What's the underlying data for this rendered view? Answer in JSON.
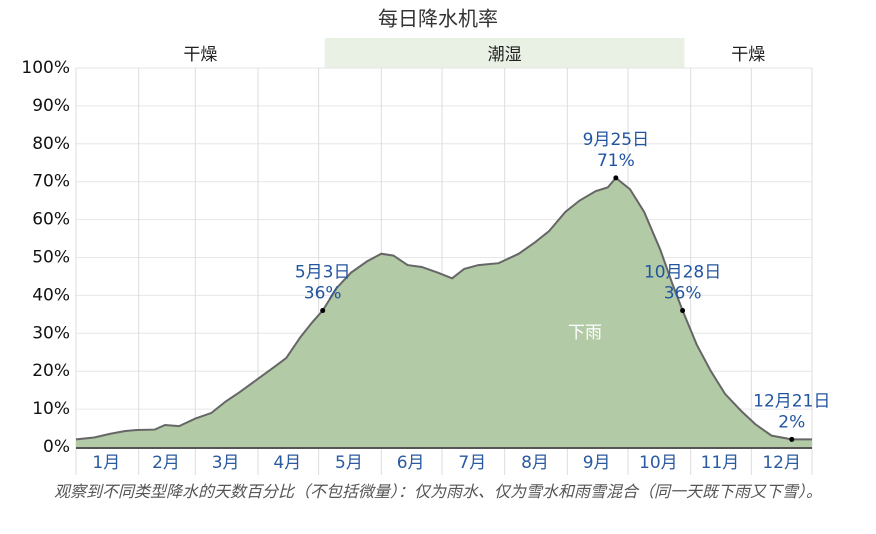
{
  "chart_data": {
    "type": "area",
    "title": "每日降水机率",
    "x": [
      1,
      10,
      18,
      25,
      31,
      40,
      45,
      52,
      60,
      68,
      75,
      82,
      91,
      100,
      105,
      112,
      118,
      123,
      130,
      137,
      145,
      152,
      158,
      165,
      172,
      180,
      187,
      193,
      200,
      210,
      220,
      228,
      235,
      243,
      250,
      258,
      264,
      268,
      275,
      282,
      290,
      296,
      301,
      308,
      315,
      322,
      330,
      337,
      345,
      355,
      365
    ],
    "series": [
      {
        "name": "下雨",
        "color": "#b2caa6",
        "line_color": "#666666",
        "values": [
          2,
          2.5,
          3.5,
          4.2,
          4.5,
          4.6,
          5.8,
          5.5,
          7.5,
          9,
          12,
          14.5,
          18,
          21.5,
          23.5,
          29,
          33,
          36,
          42,
          46,
          49,
          51,
          50.5,
          48,
          47.5,
          46,
          44.5,
          47,
          48,
          48.5,
          51,
          54,
          57,
          62,
          65,
          67.5,
          68.5,
          71,
          68,
          62,
          52,
          43,
          36,
          27,
          20,
          14,
          9.5,
          6,
          3,
          2,
          2
        ]
      }
    ],
    "xlim": [
      1,
      365
    ],
    "xticks": [
      {
        "value": 16,
        "label": "1月"
      },
      {
        "value": 45.5,
        "label": "2月"
      },
      {
        "value": 75,
        "label": "3月"
      },
      {
        "value": 105.5,
        "label": "4月"
      },
      {
        "value": 136,
        "label": "5月"
      },
      {
        "value": 166.5,
        "label": "6月"
      },
      {
        "value": 197,
        "label": "7月"
      },
      {
        "value": 228,
        "label": "8月"
      },
      {
        "value": 258.5,
        "label": "9月"
      },
      {
        "value": 289,
        "label": "10月"
      },
      {
        "value": 319.5,
        "label": "11月"
      },
      {
        "value": 350,
        "label": "12月"
      }
    ],
    "xgrid": [
      1,
      32,
      60,
      91,
      121,
      152,
      182,
      213,
      244,
      274,
      305,
      335,
      365
    ],
    "ylim": [
      0,
      100
    ],
    "yticks": [
      {
        "value": 0,
        "label": "0%"
      },
      {
        "value": 10,
        "label": "10%"
      },
      {
        "value": 20,
        "label": "20%"
      },
      {
        "value": 30,
        "label": "30%"
      },
      {
        "value": 40,
        "label": "40%"
      },
      {
        "value": 50,
        "label": "50%"
      },
      {
        "value": 60,
        "label": "60%"
      },
      {
        "value": 70,
        "label": "70%"
      },
      {
        "value": 80,
        "label": "80%"
      },
      {
        "value": 90,
        "label": "90%"
      },
      {
        "value": 100,
        "label": "100%"
      }
    ],
    "grid": true,
    "seasons": [
      {
        "label": "干燥",
        "start": 1,
        "end": 124,
        "color": "#ffffff"
      },
      {
        "label": "潮湿",
        "start": 124,
        "end": 302,
        "color": "#e9f0e4"
      },
      {
        "label": "干燥",
        "start": 302,
        "end": 365,
        "color": "#ffffff"
      }
    ],
    "annotations": [
      {
        "label": "5月3日",
        "x": 123,
        "value": 36,
        "value_label": "36%"
      },
      {
        "label": "9月25日",
        "x": 268,
        "value": 71,
        "value_label": "71%"
      },
      {
        "label": "10月28日",
        "x": 301,
        "value": 36,
        "value_label": "36%"
      },
      {
        "label": "12月21日",
        "x": 355,
        "value": 2,
        "value_label": "2%"
      }
    ],
    "caption": "观察到不同类型降水的天数百分比（不包括微量）：仅为雨水、仅为雪水和雨雪混合（同一天既下雨又下雪）。"
  }
}
